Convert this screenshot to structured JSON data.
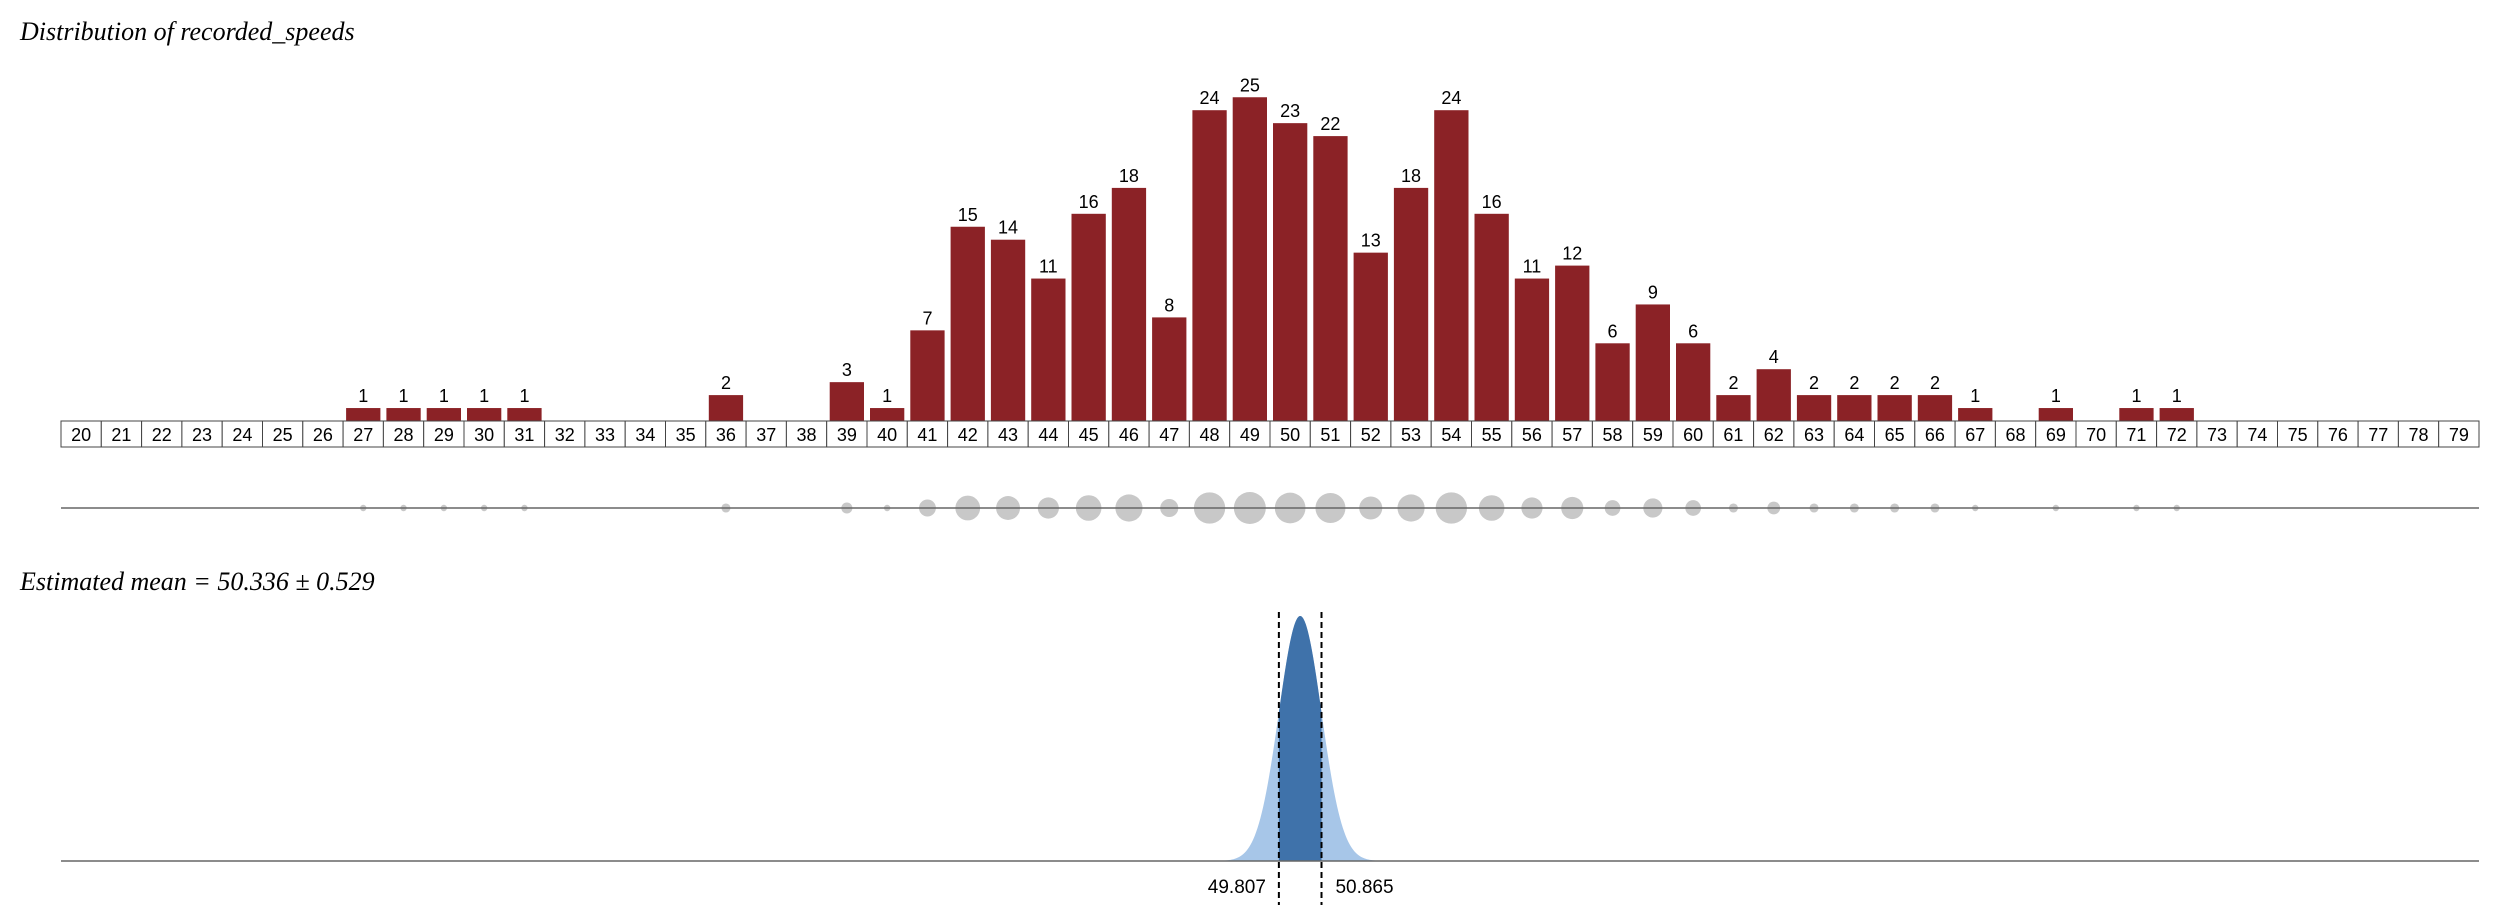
{
  "chart_data": [
    {
      "type": "bar",
      "title": "Distribution of recorded_speeds",
      "categories": [
        20,
        21,
        22,
        23,
        24,
        25,
        26,
        27,
        28,
        29,
        30,
        31,
        32,
        33,
        34,
        35,
        36,
        37,
        38,
        39,
        40,
        41,
        42,
        43,
        44,
        45,
        46,
        47,
        48,
        49,
        50,
        51,
        52,
        53,
        54,
        55,
        56,
        57,
        58,
        59,
        60,
        61,
        62,
        63,
        64,
        65,
        66,
        67,
        68,
        69,
        70,
        71,
        72,
        73,
        74,
        75,
        76,
        77,
        78,
        79
      ],
      "values": [
        0,
        0,
        0,
        0,
        0,
        0,
        0,
        1,
        1,
        1,
        1,
        1,
        0,
        0,
        0,
        0,
        2,
        0,
        0,
        3,
        1,
        7,
        15,
        14,
        11,
        16,
        18,
        8,
        24,
        25,
        23,
        22,
        13,
        18,
        24,
        16,
        11,
        12,
        6,
        9,
        6,
        2,
        4,
        2,
        2,
        2,
        2,
        1,
        0,
        1,
        0,
        1,
        1,
        0,
        0,
        0,
        0,
        0,
        0,
        0
      ],
      "ylim": [
        0,
        25
      ],
      "grid": false
    },
    {
      "type": "area",
      "title": "Estimated mean = 50.336 ± 0.529",
      "mean": 50.336,
      "std_error": 0.529,
      "ci_lower": "49.807",
      "ci_upper": "50.865",
      "colors": {
        "ci_fill": "#3f72aa",
        "tail_fill": "#a7c6e8"
      }
    }
  ]
}
